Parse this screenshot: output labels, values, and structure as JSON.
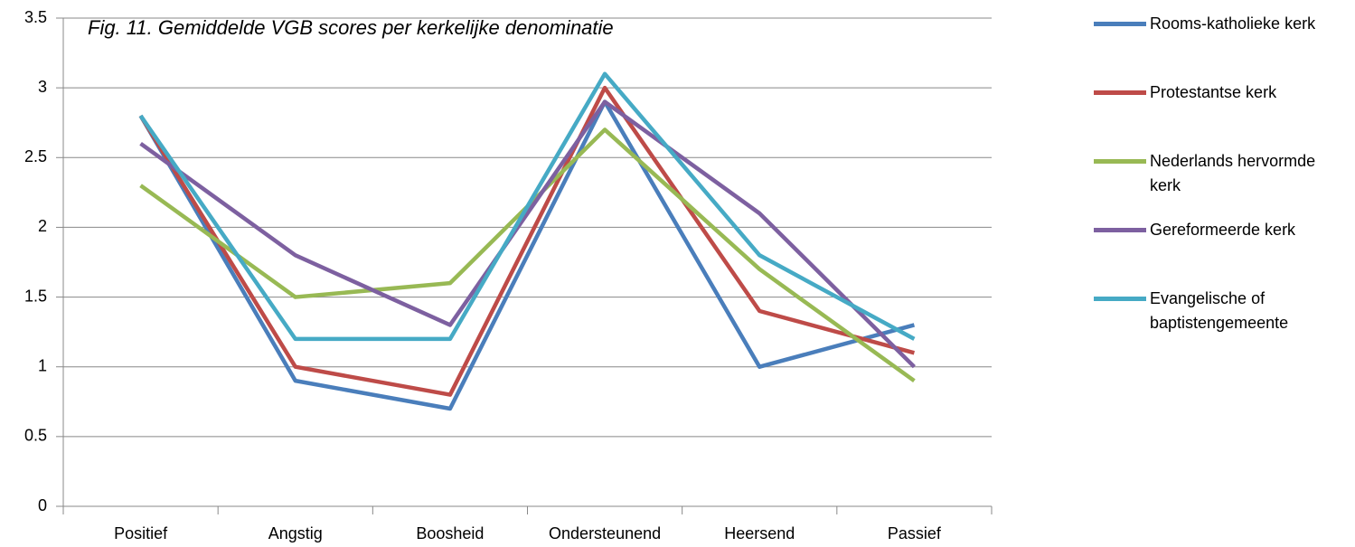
{
  "chart_data": {
    "type": "line",
    "title": "Fig. 11. Gemiddelde VGB scores per kerkelijke denominatie",
    "categories": [
      "Positief",
      "Angstig",
      "Boosheid",
      "Ondersteunend",
      "Heersend",
      "Passief"
    ],
    "series": [
      {
        "name": "Rooms-katholieke kerk",
        "color": "#4a7ebb",
        "values": [
          2.8,
          0.9,
          0.7,
          2.9,
          1.0,
          1.3
        ]
      },
      {
        "name": "Protestantse kerk",
        "color": "#be4b48",
        "values": [
          2.8,
          1.0,
          0.8,
          3.0,
          1.4,
          1.1
        ]
      },
      {
        "name": "Nederlands hervormde kerk",
        "color": "#98b954",
        "values": [
          2.3,
          1.5,
          1.6,
          2.7,
          1.7,
          0.9
        ]
      },
      {
        "name": "Gereformeerde kerk",
        "color": "#7d60a0",
        "values": [
          2.6,
          1.8,
          1.3,
          2.9,
          2.1,
          1.0
        ]
      },
      {
        "name": "Evangelische of baptistengemeente",
        "color": "#46aac5",
        "values": [
          2.8,
          1.2,
          1.2,
          3.1,
          1.8,
          1.2
        ]
      }
    ],
    "ylim": [
      0,
      3.5
    ],
    "yticks": [
      0,
      0.5,
      1,
      1.5,
      2,
      2.5,
      3,
      3.5
    ],
    "grid": true,
    "legend": "right"
  }
}
